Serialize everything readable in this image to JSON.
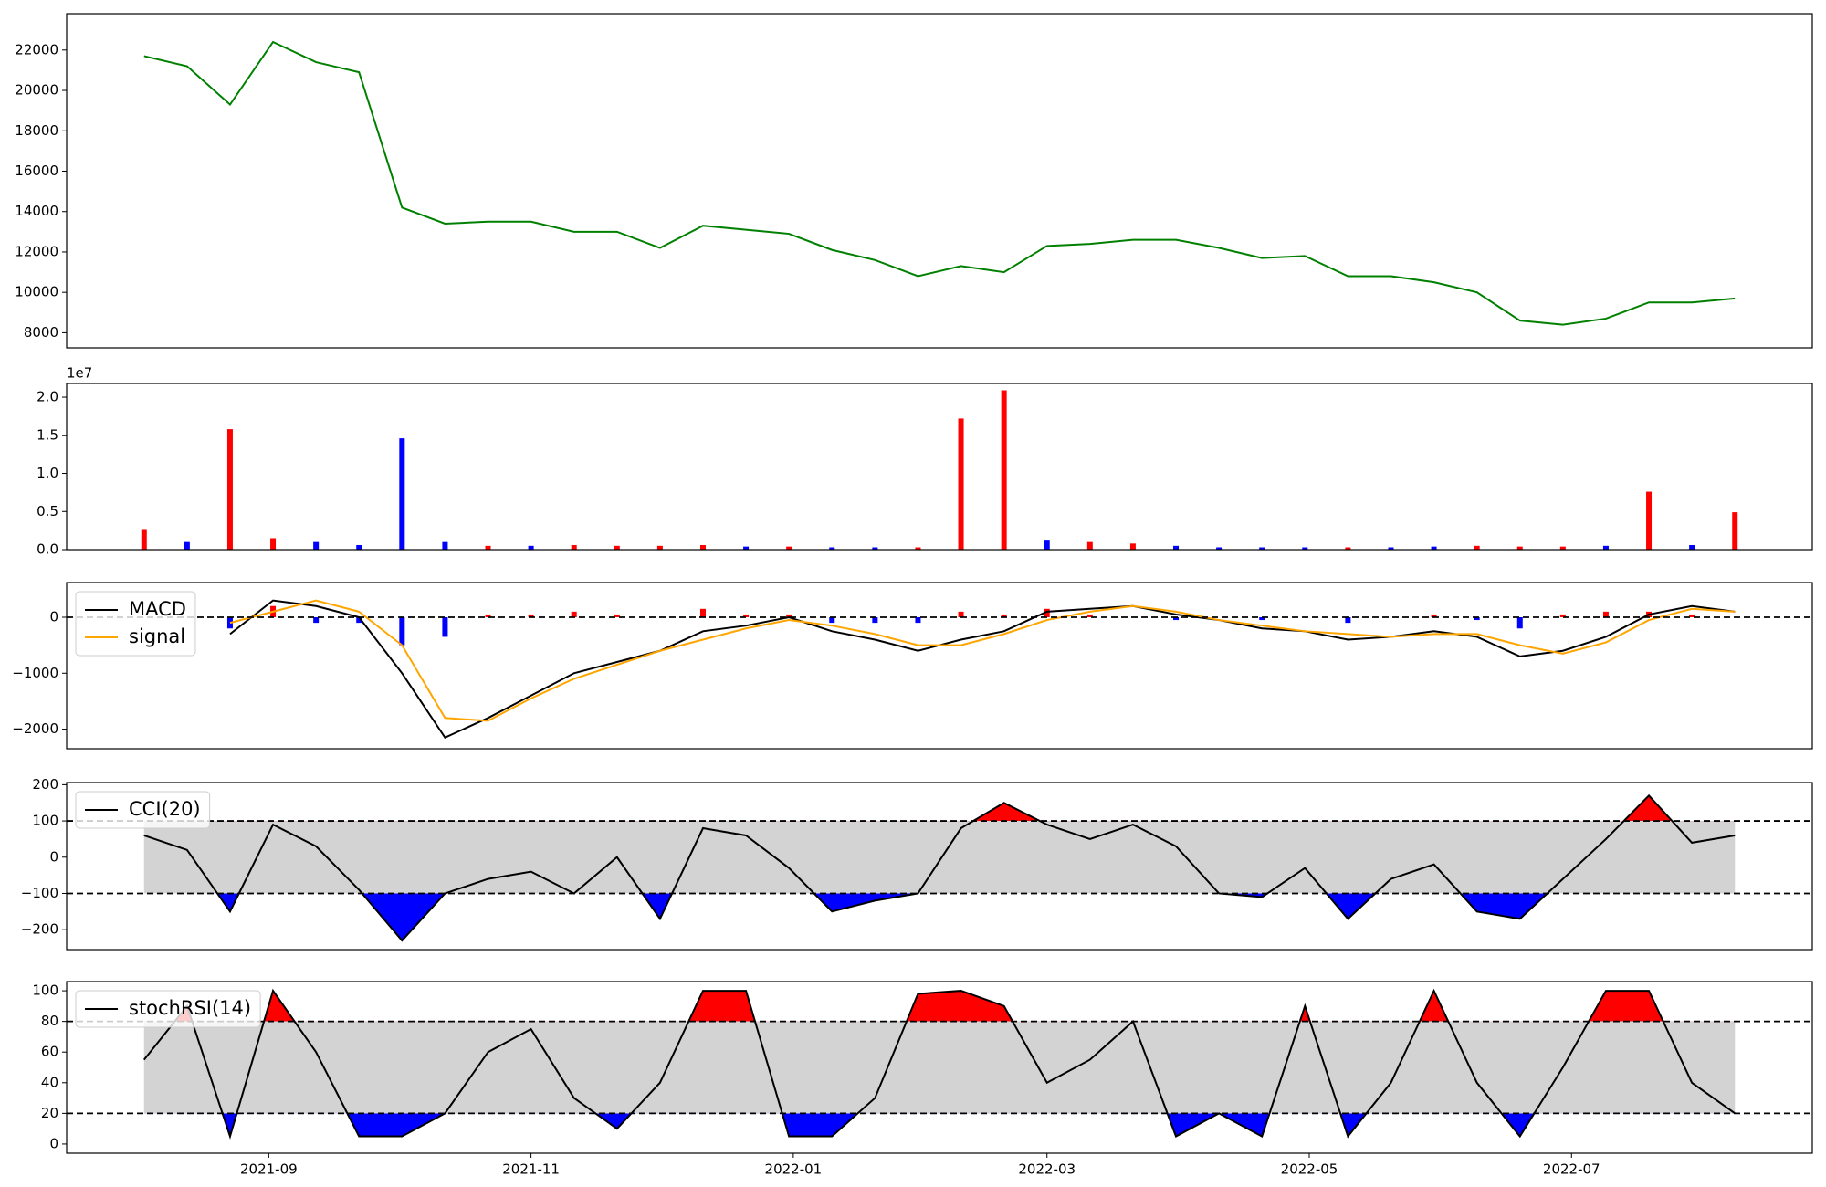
{
  "chart_data": [
    {
      "type": "line",
      "xlim": [
        18824,
        19230
      ],
      "ylim": [
        7250,
        23800
      ],
      "yticks": [
        8000,
        10000,
        12000,
        14000,
        16000,
        18000,
        20000,
        22000
      ],
      "x": [
        18842,
        18852,
        18862,
        18872,
        18882,
        18892,
        18902,
        18912,
        18922,
        18932,
        18942,
        18952,
        18962,
        18972,
        18982,
        18992,
        19002,
        19012,
        19022,
        19032,
        19042,
        19052,
        19062,
        19072,
        19082,
        19092,
        19102,
        19112,
        19122,
        19132,
        19142,
        19152,
        19162,
        19172,
        19182,
        19192,
        19202,
        19212
      ],
      "series": [
        {
          "color": "green",
          "values": [
            21700,
            21200,
            19300,
            22400,
            21400,
            20900,
            14200,
            13400,
            13500,
            13500,
            13000,
            13000,
            12200,
            13300,
            13100,
            12900,
            12100,
            11600,
            10800,
            11300,
            11000,
            12300,
            12400,
            12600,
            12600,
            12200,
            11700,
            11800,
            10800,
            10800,
            10500,
            10000,
            8600,
            8400,
            8700,
            9500,
            9500,
            9700
          ]
        }
      ]
    },
    {
      "type": "bar",
      "xlim": [
        18824,
        19230
      ],
      "ylim": [
        0,
        21800000
      ],
      "offset_text": "1e7",
      "yticks": [
        {
          "value": 0,
          "label": "0.0"
        },
        {
          "value": 5000000,
          "label": "0.5"
        },
        {
          "value": 10000000,
          "label": "1.0"
        },
        {
          "value": 15000000,
          "label": "1.5"
        },
        {
          "value": 20000000,
          "label": "2.0"
        }
      ],
      "x": [
        18842,
        18852,
        18862,
        18872,
        18882,
        18892,
        18902,
        18912,
        18922,
        18932,
        18942,
        18952,
        18962,
        18972,
        18982,
        18992,
        19002,
        19012,
        19022,
        19032,
        19042,
        19052,
        19062,
        19072,
        19082,
        19092,
        19102,
        19112,
        19122,
        19132,
        19142,
        19152,
        19162,
        19172,
        19182,
        19192,
        19202,
        19212
      ],
      "series": [
        {
          "values": [
            2700000,
            1000000,
            15800000,
            1500000,
            1000000,
            600000,
            14600000,
            1000000,
            500000,
            500000,
            600000,
            500000,
            500000,
            600000,
            400000,
            400000,
            300000,
            300000,
            300000,
            17200000,
            20900000,
            1300000,
            1000000,
            800000,
            500000,
            300000,
            300000,
            300000,
            300000,
            300000,
            400000,
            500000,
            400000,
            400000,
            500000,
            7600000,
            600000,
            4900000
          ],
          "colors": [
            "red",
            "blue",
            "red",
            "red",
            "blue",
            "blue",
            "blue",
            "blue",
            "red",
            "blue",
            "red",
            "red",
            "red",
            "red",
            "blue",
            "red",
            "blue",
            "blue",
            "red",
            "red",
            "red",
            "blue",
            "red",
            "red",
            "blue",
            "blue",
            "blue",
            "blue",
            "red",
            "blue",
            "blue",
            "red",
            "red",
            "red",
            "blue",
            "red",
            "blue",
            "red"
          ]
        }
      ]
    },
    {
      "type": "line",
      "xlim": [
        18824,
        19230
      ],
      "ylim": [
        -2350,
        620
      ],
      "hlines": [
        0
      ],
      "legend": "upper left",
      "yticks": [
        {
          "value": -2000,
          "label": "−2000"
        },
        {
          "value": -1000,
          "label": "−1000"
        },
        0
      ],
      "x": [
        18842,
        18852,
        18862,
        18872,
        18882,
        18892,
        18902,
        18912,
        18922,
        18932,
        18942,
        18952,
        18962,
        18972,
        18982,
        18992,
        19002,
        19012,
        19022,
        19032,
        19042,
        19052,
        19062,
        19072,
        19082,
        19092,
        19102,
        19112,
        19122,
        19132,
        19142,
        19152,
        19162,
        19172,
        19182,
        19192,
        19202,
        19212
      ],
      "series": [
        {
          "kind": "bar",
          "pos_color": "red",
          "neg_color": "blue",
          "values": [
            null,
            null,
            -200,
            200,
            -100,
            -100,
            -500,
            -350,
            50,
            50,
            100,
            50,
            0,
            150,
            50,
            50,
            -100,
            -100,
            -100,
            100,
            50,
            150,
            50,
            0,
            -50,
            0,
            -50,
            0,
            -100,
            0,
            50,
            -50,
            -200,
            50,
            100,
            100,
            50,
            0
          ]
        },
        {
          "kind": "line",
          "name": "MACD",
          "color": "black",
          "values": [
            null,
            null,
            -300,
            300,
            200,
            0,
            -1000,
            -2150,
            -1800,
            -1400,
            -1000,
            -800,
            -600,
            -250,
            -150,
            0,
            -250,
            -400,
            -600,
            -400,
            -250,
            100,
            150,
            200,
            50,
            -50,
            -200,
            -250,
            -400,
            -350,
            -250,
            -350,
            -700,
            -600,
            -350,
            50,
            200,
            100
          ]
        },
        {
          "kind": "line",
          "name": "signal",
          "color": "orange",
          "values": [
            null,
            null,
            -100,
            100,
            300,
            100,
            -500,
            -1800,
            -1850,
            -1450,
            -1100,
            -850,
            -600,
            -400,
            -200,
            -50,
            -150,
            -300,
            -500,
            -500,
            -300,
            -50,
            100,
            200,
            100,
            -50,
            -150,
            -250,
            -300,
            -350,
            -300,
            -300,
            -500,
            -650,
            -450,
            -50,
            150,
            100
          ]
        }
      ]
    },
    {
      "type": "line",
      "xlim": [
        18824,
        19230
      ],
      "ylim": [
        -255,
        206
      ],
      "band": [
        -100,
        100
      ],
      "band_color": "lightgray",
      "above_color": "red",
      "below_color": "blue",
      "legend": "upper left",
      "yticks": [
        {
          "value": -200,
          "label": "−200"
        },
        {
          "value": -100,
          "label": "−100"
        },
        0,
        100,
        200
      ],
      "x": [
        18842,
        18852,
        18862,
        18872,
        18882,
        18892,
        18902,
        18912,
        18922,
        18932,
        18942,
        18952,
        18962,
        18972,
        18982,
        18992,
        19002,
        19012,
        19022,
        19032,
        19042,
        19052,
        19062,
        19072,
        19082,
        19092,
        19102,
        19112,
        19122,
        19132,
        19142,
        19152,
        19162,
        19172,
        19182,
        19192,
        19202,
        19212
      ],
      "series": [
        {
          "name": "CCI(20)",
          "color": "black",
          "values": [
            60,
            20,
            -150,
            90,
            30,
            -90,
            -230,
            -100,
            -60,
            -40,
            -100,
            0,
            -170,
            80,
            60,
            -30,
            -150,
            -120,
            -100,
            80,
            150,
            90,
            50,
            90,
            30,
            -100,
            -110,
            -30,
            -170,
            -60,
            -20,
            -150,
            -170,
            -60,
            50,
            170,
            40,
            60
          ]
        }
      ]
    },
    {
      "type": "line",
      "xlim": [
        18824,
        19230
      ],
      "ylim": [
        -6,
        106
      ],
      "band": [
        20,
        80
      ],
      "band_color": "lightgray",
      "above_color": "red",
      "below_color": "blue",
      "legend": "upper left",
      "yticks": [
        0,
        20,
        40,
        60,
        80,
        100
      ],
      "xticks": [
        {
          "value": 18871,
          "label": "2021-09"
        },
        {
          "value": 18932,
          "label": "2021-11"
        },
        {
          "value": 18993,
          "label": "2022-01"
        },
        {
          "value": 19052,
          "label": "2022-03"
        },
        {
          "value": 19113,
          "label": "2022-05"
        },
        {
          "value": 19174,
          "label": "2022-07"
        }
      ],
      "x": [
        18842,
        18852,
        18862,
        18872,
        18882,
        18892,
        18902,
        18912,
        18922,
        18932,
        18942,
        18952,
        18962,
        18972,
        18982,
        18992,
        19002,
        19012,
        19022,
        19032,
        19042,
        19052,
        19062,
        19072,
        19082,
        19092,
        19102,
        19112,
        19122,
        19132,
        19142,
        19152,
        19162,
        19172,
        19182,
        19192,
        19202,
        19212
      ],
      "series": [
        {
          "name": "stochRSI(14)",
          "color": "black",
          "values": [
            55,
            90,
            5,
            100,
            60,
            5,
            5,
            20,
            60,
            75,
            30,
            10,
            40,
            100,
            100,
            5,
            5,
            30,
            98,
            100,
            90,
            40,
            55,
            80,
            5,
            20,
            5,
            90,
            5,
            40,
            100,
            40,
            5,
            50,
            100,
            100,
            40,
            20
          ]
        }
      ]
    }
  ]
}
